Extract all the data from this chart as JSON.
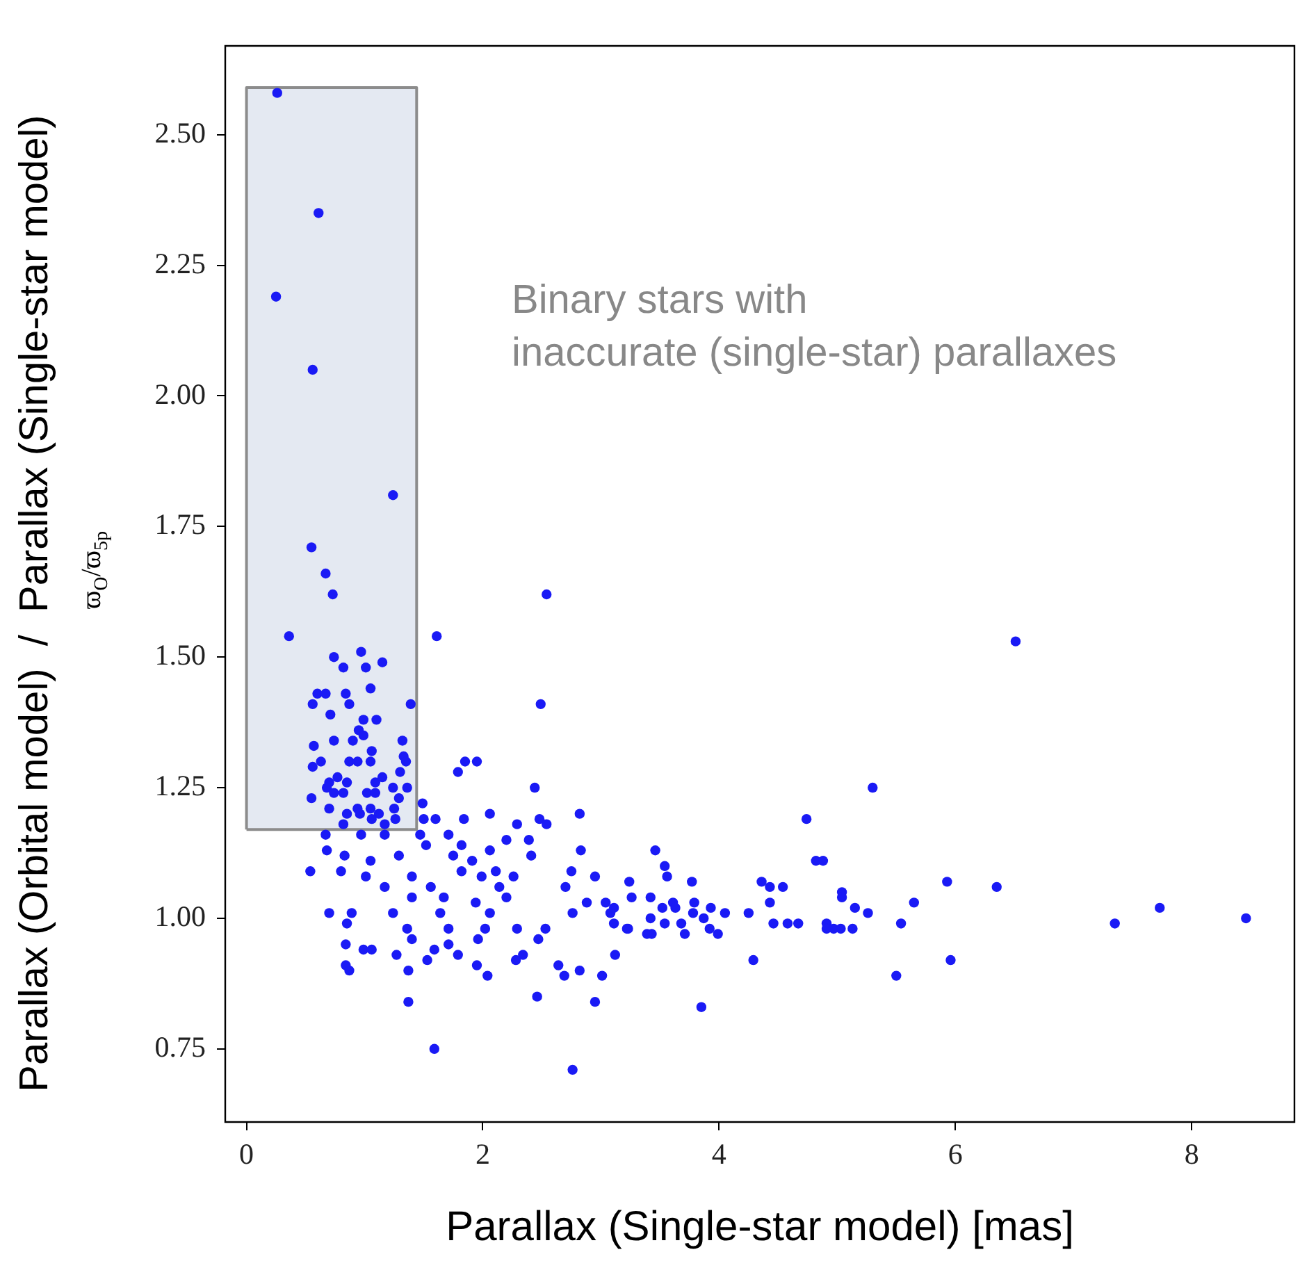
{
  "chart_data": {
    "type": "scatter",
    "xlabel": "Parallax (Single-star model) [mas]",
    "ylabel": "Parallax (Orbital model)  /  Parallax (Single-star model)",
    "annotations": [
      "ϖ$_{O}$/ϖ$_{5p}$",
      "Binary stars with\ninaccurate (single-star) parallaxes"
    ],
    "xlim": [
      -0.18,
      8.87
    ],
    "ylim": [
      0.61,
      2.67
    ],
    "xticks": [
      0,
      2,
      4,
      6,
      8
    ],
    "yticks": [
      {
        "value": 0.75,
        "label": "0.75"
      },
      {
        "value": 1,
        "label": "1.00"
      },
      {
        "value": 1.25,
        "label": "1.25"
      },
      {
        "value": 1.5,
        "label": "1.50"
      },
      {
        "value": 1.75,
        "label": "1.75"
      },
      {
        "value": 2,
        "label": "2.00"
      },
      {
        "value": 2.25,
        "label": "2.25"
      },
      {
        "value": 2.5,
        "label": "2.50"
      }
    ],
    "series": [
      {
        "type": "area",
        "color": "#8c8c8c",
        "marker": "none",
        "x": [
          0,
          0,
          1.44,
          1.44,
          0
        ],
        "values": [
          1.17,
          2.59,
          2.59,
          1.17,
          1.17
        ]
      },
      {
        "color": "#1a1af5",
        "marker": "circle",
        "x": [
          0.26,
          0.61,
          0.25,
          0.56,
          1.24,
          0.55,
          0.67,
          0.73,
          0.36,
          2.54,
          1.61,
          2.49,
          6.51,
          0.74,
          0.97,
          0.82,
          1.01,
          1.15,
          0.6,
          0.67,
          0.84,
          1.05,
          0.56,
          0.87,
          0.71,
          1.39,
          0.99,
          1.1,
          0.95,
          0.99,
          0.57,
          0.74,
          0.9,
          1.06,
          1.32,
          1.33,
          0.56,
          0.63,
          0.87,
          0.94,
          1.05,
          1.35,
          1.3,
          0.77,
          0.7,
          0.68,
          0.85,
          1.09,
          1.15,
          1.24,
          1.36,
          0.55,
          0.74,
          0.82,
          1.02,
          1.09,
          1.29,
          0.7,
          0.94,
          1.05,
          1.12,
          1.25,
          0.85,
          0.96,
          1.26,
          0.82,
          1.06,
          1.17,
          1.85,
          1.95,
          1.79,
          2.44,
          1.49,
          1.5,
          1.6,
          1.84,
          2.06,
          2.48,
          2.54,
          2.82,
          2.29,
          0.67,
          0.97,
          1.17,
          1.47,
          1.71,
          1.82,
          2.06,
          2.2,
          2.39,
          0.68,
          0.83,
          1.05,
          1.29,
          1.52,
          1.75,
          1.91,
          2.11,
          2.26,
          2.41,
          0.54,
          0.8,
          1.01,
          1.4,
          1.56,
          1.82,
          1.99,
          2.14,
          2.75,
          2.83,
          2.95,
          3.24,
          3.26,
          2.7,
          2.88,
          3.04,
          1.17,
          1.4,
          1.67,
          1.94,
          2.2,
          0.7,
          0.89,
          1.24,
          1.64,
          2.06,
          2.53,
          2.76,
          3.08,
          3.23,
          0.85,
          1.36,
          1.71,
          2.02,
          2.29,
          0.84,
          1.4,
          1.71,
          1.96,
          2.47,
          0.99,
          1.06,
          1.59,
          1.79,
          1.27,
          1.53,
          2.34,
          3.12,
          0.84,
          0.87,
          1.95,
          2.28,
          2.64,
          1.37,
          2.04,
          2.69,
          2.82,
          3.01,
          1.37,
          2.46,
          2.95,
          1.59,
          2.76,
          5.3,
          4.74,
          4.82,
          4.88,
          3.46,
          3.54,
          3.56,
          3.77,
          3.42,
          3.61,
          3.79,
          3.52,
          3.63,
          3.93,
          4.05,
          3.11,
          3.11,
          3.42,
          3.68,
          3.78,
          3.87,
          4.25,
          3.54,
          3.22,
          3.39,
          3.43,
          3.71,
          3.92,
          3.99,
          4.36,
          4.43,
          4.54,
          4.43,
          5.04,
          5.04,
          5.15,
          5.26,
          4.46,
          4.58,
          4.67,
          4.91,
          4.91,
          4.97,
          5.03,
          5.13,
          5.54,
          5.65,
          5.93,
          6.35,
          4.29,
          5.96,
          5.5,
          3.85,
          7.35,
          7.73,
          8.46
        ],
        "values": [
          2.58,
          2.35,
          2.19,
          2.05,
          1.81,
          1.71,
          1.66,
          1.62,
          1.54,
          1.62,
          1.54,
          1.41,
          1.53,
          1.5,
          1.51,
          1.48,
          1.48,
          1.49,
          1.43,
          1.43,
          1.43,
          1.44,
          1.41,
          1.41,
          1.39,
          1.41,
          1.38,
          1.38,
          1.36,
          1.35,
          1.33,
          1.34,
          1.34,
          1.32,
          1.34,
          1.31,
          1.29,
          1.3,
          1.3,
          1.3,
          1.3,
          1.3,
          1.28,
          1.27,
          1.26,
          1.25,
          1.26,
          1.26,
          1.27,
          1.25,
          1.25,
          1.23,
          1.24,
          1.24,
          1.24,
          1.24,
          1.23,
          1.21,
          1.21,
          1.21,
          1.2,
          1.21,
          1.2,
          1.2,
          1.19,
          1.18,
          1.19,
          1.18,
          1.3,
          1.3,
          1.28,
          1.25,
          1.22,
          1.19,
          1.19,
          1.19,
          1.2,
          1.19,
          1.18,
          1.2,
          1.18,
          1.16,
          1.16,
          1.16,
          1.16,
          1.16,
          1.14,
          1.13,
          1.15,
          1.15,
          1.13,
          1.12,
          1.11,
          1.12,
          1.14,
          1.12,
          1.11,
          1.09,
          1.08,
          1.12,
          1.09,
          1.09,
          1.08,
          1.08,
          1.06,
          1.09,
          1.08,
          1.06,
          1.09,
          1.13,
          1.08,
          1.07,
          1.04,
          1.06,
          1.03,
          1.03,
          1.06,
          1.04,
          1.04,
          1.03,
          1.04,
          1.01,
          1.01,
          1.01,
          1.01,
          1.01,
          0.98,
          1.01,
          1.01,
          0.98,
          0.99,
          0.98,
          0.98,
          0.98,
          0.98,
          0.95,
          0.96,
          0.95,
          0.96,
          0.96,
          0.94,
          0.94,
          0.94,
          0.93,
          0.93,
          0.92,
          0.93,
          0.93,
          0.91,
          0.9,
          0.91,
          0.92,
          0.91,
          0.9,
          0.89,
          0.89,
          0.9,
          0.89,
          0.84,
          0.85,
          0.84,
          0.75,
          0.71,
          1.25,
          1.19,
          1.11,
          1.11,
          1.13,
          1.1,
          1.08,
          1.07,
          1.04,
          1.03,
          1.03,
          1.02,
          1.02,
          1.02,
          1.01,
          1.02,
          0.99,
          1,
          0.99,
          1.01,
          1,
          1.01,
          0.99,
          0.98,
          0.97,
          0.97,
          0.97,
          0.98,
          0.97,
          1.07,
          1.06,
          1.06,
          1.03,
          1.05,
          1.04,
          1.02,
          1.01,
          0.99,
          0.99,
          0.99,
          0.99,
          0.98,
          0.98,
          0.98,
          0.98,
          0.99,
          1.03,
          1.07,
          1.06,
          0.92,
          0.92,
          0.89,
          0.83,
          0.99,
          1.02,
          1
        ]
      }
    ]
  }
}
